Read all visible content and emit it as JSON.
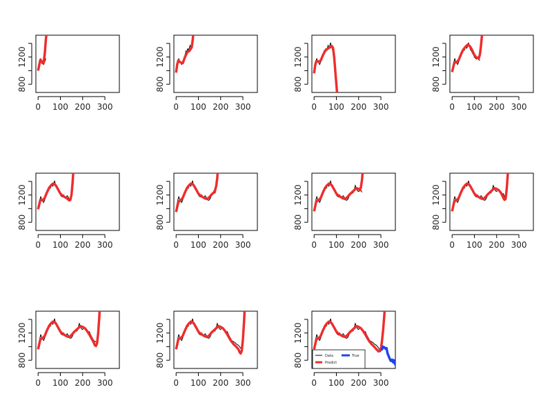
{
  "chart_data": {
    "type": "line",
    "layout": {
      "rows": 3,
      "cols": 4
    },
    "panel_count": 11,
    "shared_axes": {
      "xlim": [
        -10,
        365
      ],
      "ylim": [
        680,
        1520
      ],
      "x_ticks": [
        0,
        100,
        200,
        300
      ],
      "x_tick_labels": [
        "0",
        "100",
        "200",
        "300"
      ],
      "y_ticks": [
        800,
        1000,
        1200,
        1400
      ],
      "y_tick_labels": [
        "800",
        "",
        "1200",
        ""
      ],
      "box": true,
      "grid": false
    },
    "data_series": {
      "name": "Data",
      "color": "#000000",
      "x": [
        0,
        6,
        12,
        15,
        20,
        25,
        30,
        35,
        40,
        45,
        48,
        52,
        55,
        60,
        63,
        66,
        70,
        74,
        78,
        82,
        88,
        92,
        96,
        100,
        105,
        110,
        115,
        120,
        125,
        130,
        135,
        140,
        145,
        150,
        155,
        160,
        165,
        170,
        175,
        180,
        185,
        190,
        195,
        200,
        205,
        210,
        215,
        220,
        225,
        230,
        235,
        240,
        245,
        250,
        255,
        260,
        265,
        270,
        275,
        280,
        285,
        290,
        295,
        300
      ],
      "y": [
        1000,
        1100,
        1180,
        1140,
        1120,
        1090,
        1130,
        1180,
        1230,
        1290,
        1270,
        1320,
        1300,
        1340,
        1370,
        1330,
        1360,
        1410,
        1350,
        1310,
        1280,
        1250,
        1230,
        1200,
        1180,
        1170,
        1200,
        1160,
        1150,
        1190,
        1170,
        1140,
        1120,
        1130,
        1160,
        1200,
        1230,
        1250,
        1230,
        1280,
        1340,
        1300,
        1260,
        1250,
        1290,
        1270,
        1240,
        1230,
        1210,
        1220,
        1180,
        1150,
        1120,
        1090,
        1080,
        1070,
        1060,
        1040,
        1030,
        1020,
        1000,
        980,
        950,
        920
      ]
    },
    "prediction_color": "#ee2d2d",
    "true_series": {
      "name": "True",
      "color": "#1e44ee",
      "x": [
        300,
        305,
        310,
        315,
        320,
        325,
        330,
        335,
        340,
        345,
        350,
        355,
        358,
        362,
        365
      ],
      "y": [
        950,
        960,
        1000,
        990,
        970,
        980,
        900,
        860,
        820,
        790,
        810,
        770,
        800,
        760,
        730
      ]
    },
    "panels": [
      {
        "fit_end": 37,
        "x_cut": 45,
        "predict": {
          "x": [
            0,
            5,
            10,
            15,
            20,
            25,
            30,
            35,
            40,
            45
          ],
          "y": [
            1000,
            1080,
            1160,
            1140,
            1110,
            1120,
            1250,
            1460,
            1600,
            1750
          ]
        }
      },
      {
        "fit_end": 70,
        "x_cut": 80,
        "predict": {
          "x": [
            0,
            5,
            10,
            20,
            30,
            40,
            50,
            60,
            70,
            75,
            80
          ],
          "y": [
            970,
            1090,
            1150,
            1120,
            1110,
            1200,
            1270,
            1290,
            1340,
            1460,
            1650
          ]
        }
      },
      {
        "fit_end": 95,
        "x_cut": 110,
        "predict": {
          "x": [
            0,
            5,
            10,
            20,
            30,
            40,
            50,
            60,
            70,
            80,
            85,
            90,
            95,
            100,
            105,
            110
          ],
          "y": [
            960,
            1080,
            1140,
            1130,
            1150,
            1230,
            1290,
            1320,
            1340,
            1360,
            1330,
            1200,
            1000,
            800,
            600,
            400
          ]
        }
      },
      {
        "fit_end": 125,
        "x_cut": 140,
        "predict": {
          "x": [
            0,
            10,
            20,
            30,
            40,
            50,
            60,
            70,
            80,
            90,
            100,
            110,
            120,
            125,
            130,
            135,
            140
          ],
          "y": [
            980,
            1120,
            1120,
            1160,
            1240,
            1310,
            1350,
            1380,
            1360,
            1300,
            1230,
            1190,
            1180,
            1240,
            1380,
            1550,
            1750
          ]
        }
      },
      {
        "fit_end": 150,
        "x_cut": 162,
        "predict": {
          "x": [
            0,
            10,
            20,
            30,
            40,
            50,
            60,
            70,
            80,
            90,
            100,
            110,
            120,
            130,
            140,
            145,
            150,
            155,
            160
          ],
          "y": [
            990,
            1130,
            1120,
            1160,
            1240,
            1310,
            1350,
            1370,
            1340,
            1280,
            1220,
            1190,
            1170,
            1150,
            1120,
            1130,
            1200,
            1380,
            1650
          ]
        }
      },
      {
        "fit_end": 180,
        "x_cut": 192,
        "predict": {
          "x": [
            0,
            10,
            20,
            30,
            40,
            50,
            60,
            70,
            80,
            90,
            100,
            110,
            120,
            130,
            140,
            150,
            160,
            170,
            175,
            180,
            185,
            190
          ],
          "y": [
            950,
            1100,
            1120,
            1160,
            1240,
            1310,
            1350,
            1370,
            1340,
            1280,
            1220,
            1190,
            1170,
            1150,
            1140,
            1170,
            1210,
            1240,
            1270,
            1330,
            1450,
            1700
          ]
        }
      },
      {
        "fit_end": 215,
        "x_cut": 225,
        "predict": {
          "x": [
            0,
            10,
            20,
            30,
            40,
            50,
            60,
            70,
            80,
            90,
            100,
            110,
            120,
            130,
            140,
            150,
            160,
            170,
            180,
            190,
            200,
            205,
            210,
            215,
            220,
            225
          ],
          "y": [
            960,
            1110,
            1120,
            1160,
            1240,
            1310,
            1350,
            1370,
            1340,
            1280,
            1220,
            1190,
            1170,
            1150,
            1140,
            1170,
            1210,
            1240,
            1270,
            1300,
            1290,
            1270,
            1310,
            1420,
            1600,
            1800
          ]
        }
      },
      {
        "fit_end": 240,
        "x_cut": 255,
        "predict": {
          "x": [
            0,
            10,
            20,
            30,
            40,
            50,
            60,
            70,
            80,
            90,
            100,
            110,
            120,
            130,
            140,
            150,
            160,
            170,
            180,
            190,
            200,
            210,
            220,
            230,
            235,
            240,
            245,
            250,
            255
          ],
          "y": [
            960,
            1110,
            1120,
            1160,
            1240,
            1310,
            1350,
            1370,
            1340,
            1280,
            1220,
            1190,
            1170,
            1150,
            1140,
            1170,
            1210,
            1240,
            1270,
            1300,
            1290,
            1270,
            1230,
            1160,
            1130,
            1140,
            1280,
            1500,
            1800
          ]
        }
      },
      {
        "fit_end": 265,
        "x_cut": 280,
        "predict": {
          "x": [
            0,
            10,
            20,
            30,
            40,
            50,
            60,
            70,
            80,
            90,
            100,
            110,
            120,
            130,
            140,
            150,
            160,
            170,
            180,
            190,
            200,
            210,
            220,
            230,
            240,
            250,
            255,
            260,
            265,
            270,
            275,
            280
          ],
          "y": [
            960,
            1110,
            1120,
            1160,
            1240,
            1310,
            1350,
            1370,
            1340,
            1280,
            1220,
            1190,
            1170,
            1150,
            1140,
            1170,
            1210,
            1240,
            1270,
            1300,
            1290,
            1270,
            1230,
            1180,
            1120,
            1060,
            1020,
            1010,
            1050,
            1200,
            1450,
            1800
          ]
        }
      },
      {
        "fit_end": 295,
        "x_cut": 310,
        "predict": {
          "x": [
            0,
            10,
            20,
            30,
            40,
            50,
            60,
            70,
            80,
            90,
            100,
            110,
            120,
            130,
            140,
            150,
            160,
            170,
            180,
            190,
            200,
            210,
            220,
            230,
            240,
            250,
            260,
            270,
            280,
            285,
            290,
            295,
            300,
            305,
            310
          ],
          "y": [
            960,
            1110,
            1120,
            1160,
            1240,
            1310,
            1350,
            1370,
            1340,
            1280,
            1220,
            1190,
            1170,
            1150,
            1140,
            1170,
            1210,
            1240,
            1270,
            1300,
            1290,
            1270,
            1230,
            1180,
            1120,
            1070,
            1030,
            1000,
            960,
            920,
            900,
            940,
            1100,
            1350,
            1700
          ]
        }
      },
      {
        "fit_end": 300,
        "x_cut": 305,
        "legend": true,
        "predict": {
          "x": [
            0,
            10,
            20,
            30,
            40,
            50,
            60,
            70,
            80,
            90,
            100,
            110,
            120,
            130,
            140,
            150,
            160,
            170,
            180,
            190,
            200,
            210,
            220,
            230,
            240,
            250,
            260,
            270,
            280,
            290,
            300,
            305,
            310,
            315,
            320
          ],
          "y": [
            960,
            1110,
            1120,
            1160,
            1240,
            1310,
            1350,
            1370,
            1340,
            1280,
            1220,
            1190,
            1170,
            1150,
            1140,
            1170,
            1210,
            1240,
            1270,
            1300,
            1290,
            1270,
            1230,
            1180,
            1120,
            1070,
            1030,
            1000,
            960,
            930,
            960,
            1080,
            1250,
            1450,
            1700
          ]
        }
      }
    ],
    "legend": {
      "placement": "bottom-left",
      "entries": [
        {
          "label": "Data",
          "color": "#000000"
        },
        {
          "label": "Predict",
          "color": "#ee2d2d"
        },
        {
          "label": "True",
          "color": "#1e44ee"
        }
      ]
    }
  }
}
